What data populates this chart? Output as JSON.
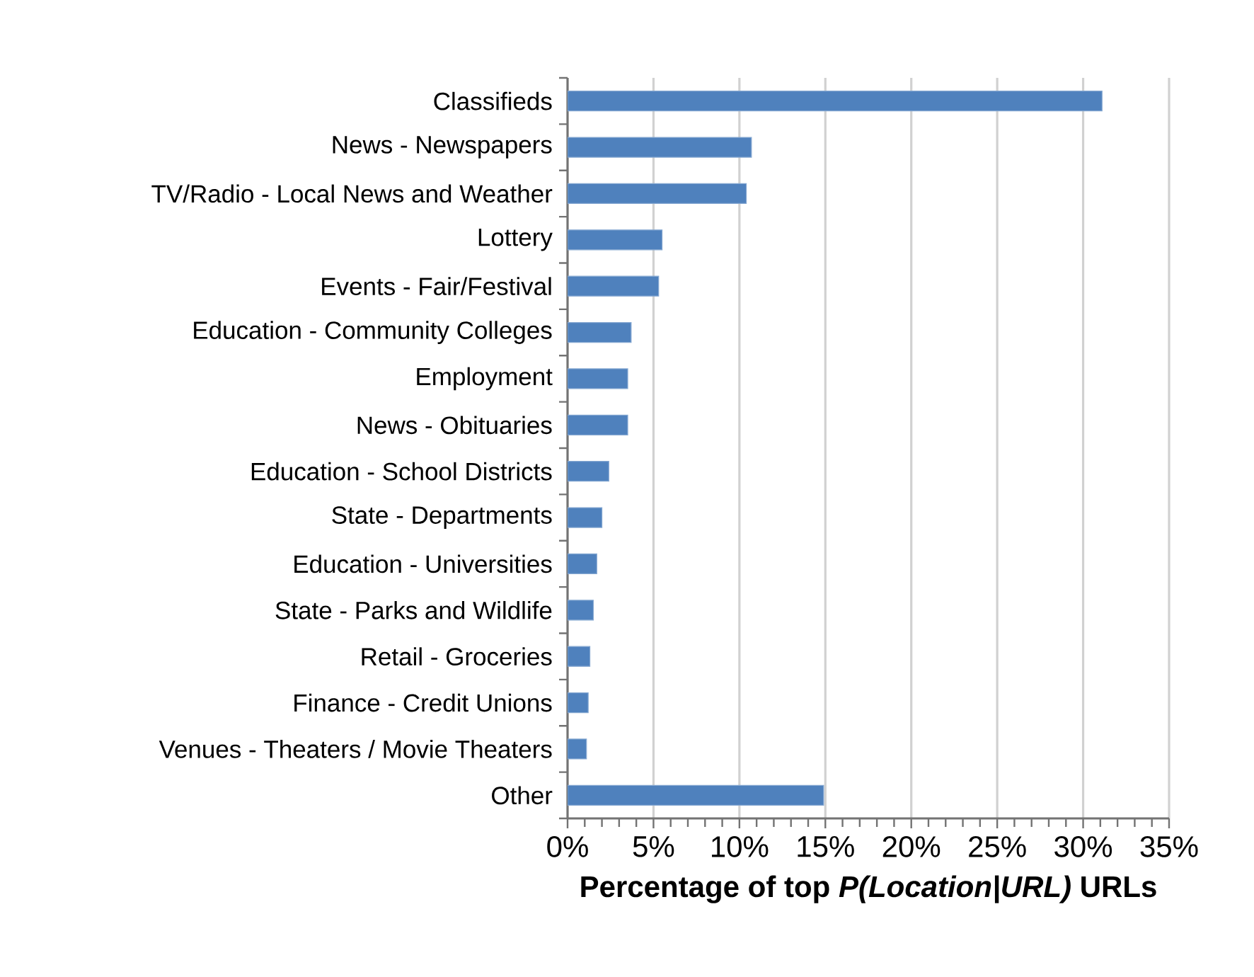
{
  "chart_data": {
    "type": "bar",
    "orientation": "horizontal",
    "categories": [
      "Classifieds",
      "News - Newspapers",
      "TV/Radio - Local News and Weather",
      "Lottery",
      "Events - Fair/Festival",
      "Education - Community Colleges",
      "Employment",
      "News - Obituaries",
      "Education - School Districts",
      "State - Departments",
      "Education - Universities",
      "State - Parks and Wildlife",
      "Retail - Groceries",
      "Finance - Credit Unions",
      "Venues - Theaters / Movie Theaters",
      "Other"
    ],
    "values": [
      31.1,
      10.7,
      10.4,
      5.5,
      5.3,
      3.7,
      3.5,
      3.5,
      2.4,
      2.0,
      1.7,
      1.5,
      1.3,
      1.2,
      1.1,
      14.9
    ],
    "color": "#4f81bd",
    "xlabel": "Percentage of top *P(Location|URL)* URLs",
    "xlim": [
      0,
      35
    ],
    "xticks": [
      {
        "value": 0,
        "label": "0%"
      },
      {
        "value": 5,
        "label": "5%"
      },
      {
        "value": 10,
        "label": "10%"
      },
      {
        "value": 15,
        "label": "15%"
      },
      {
        "value": 20,
        "label": "20%"
      },
      {
        "value": 25,
        "label": "25%"
      },
      {
        "value": 30,
        "label": "30%"
      },
      {
        "value": 35,
        "label": "35%"
      }
    ],
    "grid": "x"
  }
}
